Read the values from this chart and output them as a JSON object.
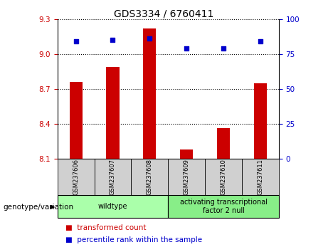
{
  "title": "GDS3334 / 6760411",
  "samples": [
    "GSM237606",
    "GSM237607",
    "GSM237608",
    "GSM237609",
    "GSM237610",
    "GSM237611"
  ],
  "bar_values": [
    8.76,
    8.89,
    9.22,
    8.18,
    8.36,
    8.75
  ],
  "percentile_values": [
    84,
    85,
    86,
    79,
    79,
    84
  ],
  "bar_color": "#cc0000",
  "dot_color": "#0000cc",
  "ylim_left": [
    8.1,
    9.3
  ],
  "ylim_right": [
    0,
    100
  ],
  "yticks_left": [
    8.1,
    8.4,
    8.7,
    9.0,
    9.3
  ],
  "yticks_right": [
    0,
    25,
    50,
    75,
    100
  ],
  "groups": [
    {
      "label": "wildtype",
      "samples": [
        0,
        1,
        2
      ],
      "color": "#aaffaa"
    },
    {
      "label": "activating transcriptional\nfactor 2 null",
      "samples": [
        3,
        4,
        5
      ],
      "color": "#88ee88"
    }
  ],
  "legend_items": [
    {
      "label": "transformed count",
      "color": "#cc0000"
    },
    {
      "label": "percentile rank within the sample",
      "color": "#0000cc"
    }
  ],
  "genotype_label": "genotype/variation",
  "background_color": "#ffffff",
  "plot_bg_color": "#ffffff",
  "tick_label_color_left": "#cc0000",
  "tick_label_color_right": "#0000cc",
  "sample_box_color": "#d0d0d0",
  "title_fontsize": 10,
  "tick_fontsize": 7.5,
  "sample_fontsize": 6.0,
  "group_fontsize": 7.0,
  "legend_fontsize": 7.5,
  "genotype_fontsize": 7.5
}
